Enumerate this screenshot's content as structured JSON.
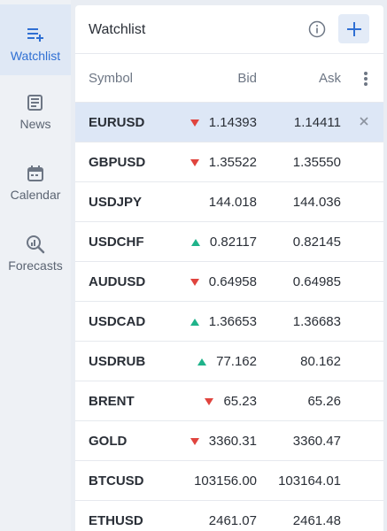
{
  "rail": {
    "items": [
      {
        "label": "Watchlist",
        "icon": "watchlist-icon",
        "active": true
      },
      {
        "label": "News",
        "icon": "news-icon",
        "active": false
      },
      {
        "label": "Calendar",
        "icon": "calendar-icon",
        "active": false
      },
      {
        "label": "Forecasts",
        "icon": "forecasts-icon",
        "active": false
      }
    ]
  },
  "watchlist": {
    "title": "Watchlist",
    "info_icon": "info-icon",
    "add_icon": "plus-icon",
    "columns": {
      "symbol": "Symbol",
      "bid": "Bid",
      "ask": "Ask"
    },
    "column_menu_icon": "more-vertical-icon",
    "rows": [
      {
        "symbol": "EURUSD",
        "direction": "down",
        "bid": "1.14393",
        "ask": "1.14411",
        "selected": true
      },
      {
        "symbol": "GBPUSD",
        "direction": "down",
        "bid": "1.35522",
        "ask": "1.35550",
        "selected": false
      },
      {
        "symbol": "USDJPY",
        "direction": "none",
        "bid": "144.018",
        "ask": "144.036",
        "selected": false
      },
      {
        "symbol": "USDCHF",
        "direction": "up",
        "bid": "0.82117",
        "ask": "0.82145",
        "selected": false
      },
      {
        "symbol": "AUDUSD",
        "direction": "down",
        "bid": "0.64958",
        "ask": "0.64985",
        "selected": false
      },
      {
        "symbol": "USDCAD",
        "direction": "up",
        "bid": "1.36653",
        "ask": "1.36683",
        "selected": false
      },
      {
        "symbol": "USDRUB",
        "direction": "up",
        "bid": "77.162",
        "ask": "80.162",
        "selected": false
      },
      {
        "symbol": "BRENT",
        "direction": "down",
        "bid": "65.23",
        "ask": "65.26",
        "selected": false
      },
      {
        "symbol": "GOLD",
        "direction": "down",
        "bid": "3360.31",
        "ask": "3360.47",
        "selected": false
      },
      {
        "symbol": "BTCUSD",
        "direction": "none",
        "bid": "103156.00",
        "ask": "103164.01",
        "selected": false
      },
      {
        "symbol": "ETHUSD",
        "direction": "none",
        "bid": "2461.07",
        "ask": "2461.48",
        "selected": false
      }
    ]
  },
  "colors": {
    "accent": "#2f6fd3",
    "up": "#1fb38a",
    "down": "#e0443e",
    "selected_row": "#dde7f6"
  }
}
